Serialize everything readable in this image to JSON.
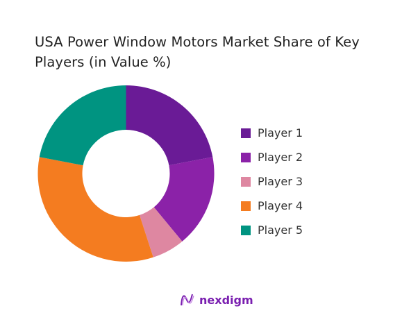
{
  "chart_data": {
    "type": "pie",
    "variant": "donut",
    "title": "USA Power Window Motors Market Share of Key Players (in Value %)",
    "categories": [
      "Player 1",
      "Player 2",
      "Player 3",
      "Player 4",
      "Player 5"
    ],
    "values": [
      22,
      17,
      6,
      33,
      22
    ],
    "colors": [
      "#6a1b96",
      "#8b22a8",
      "#de87a1",
      "#f47c20",
      "#009481"
    ],
    "legend_position": "right"
  },
  "brand": {
    "name": "nexdigm",
    "color": "#7a1fb0"
  }
}
